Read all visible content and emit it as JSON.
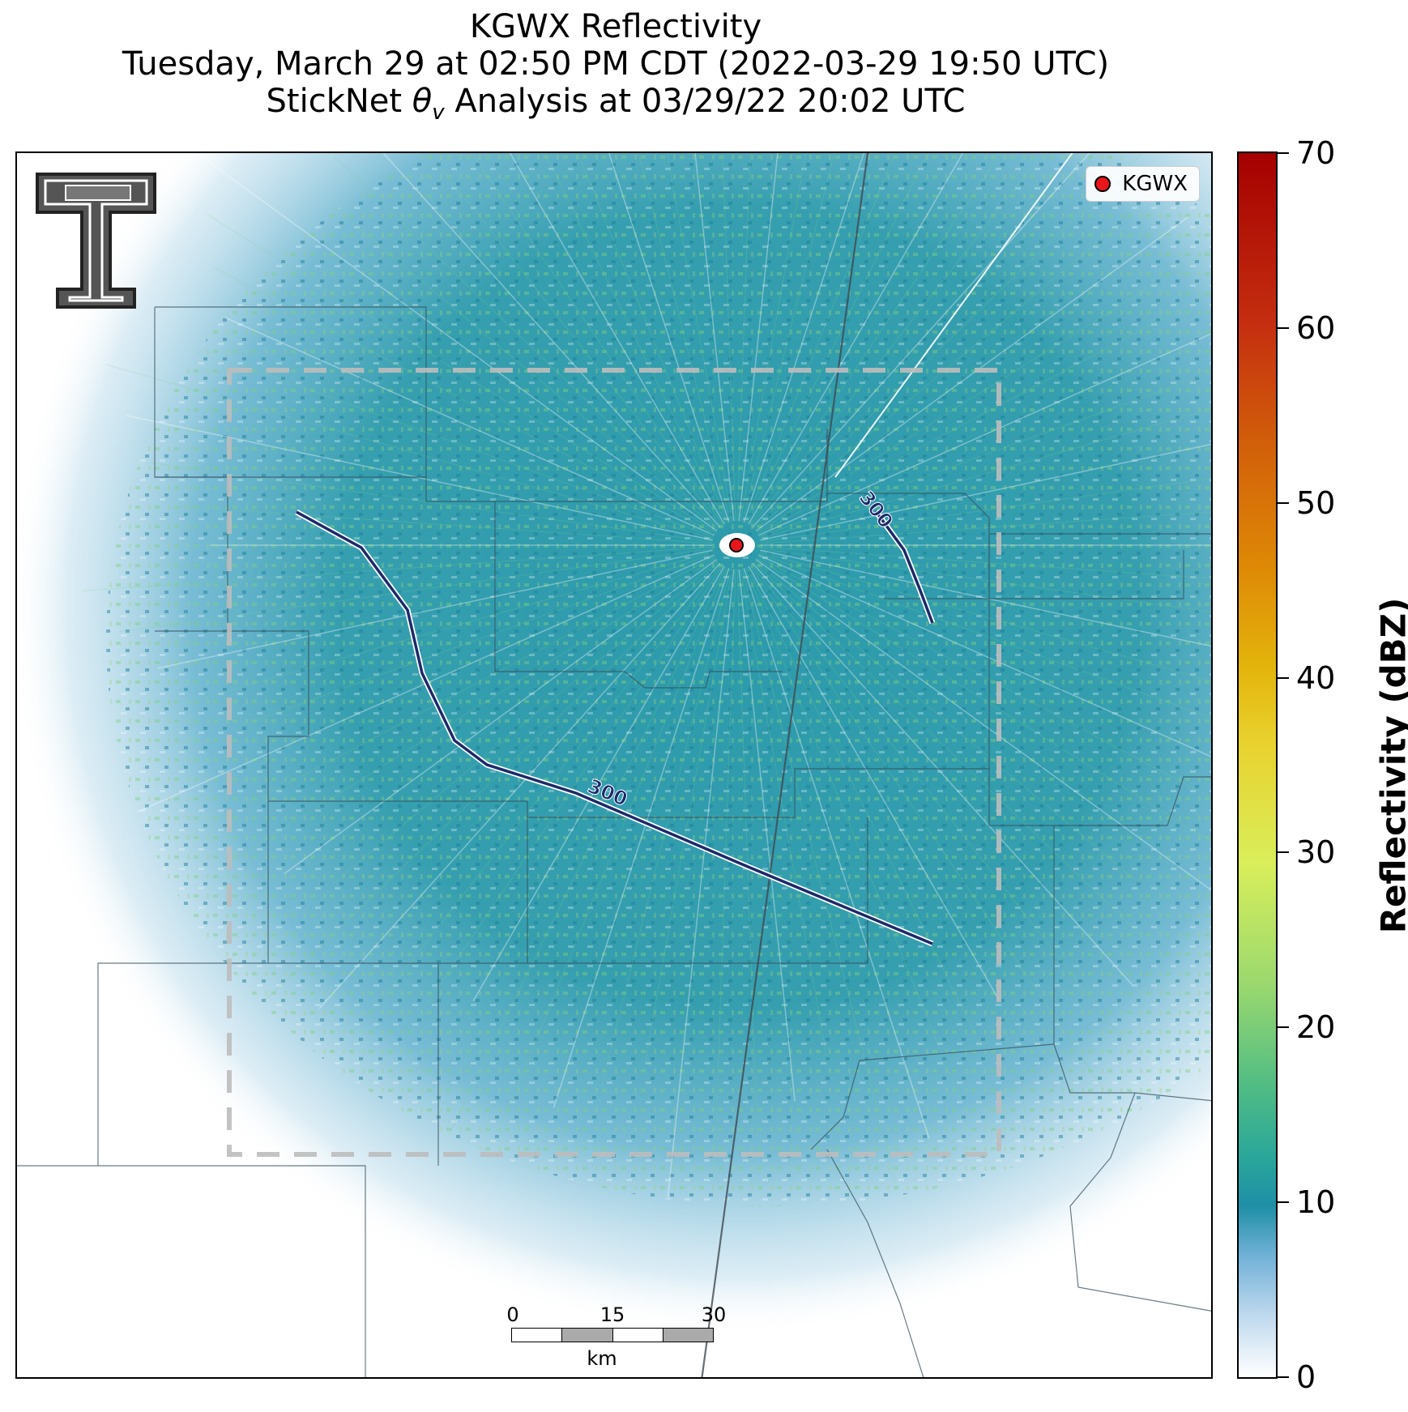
{
  "title": {
    "line1": "KGWX Reflectivity",
    "line2": "Tuesday, March 29 at 02:50 PM CDT (2022-03-29 19:50 UTC)",
    "line3_prefix": "StickNet ",
    "line3_symbol": "θ",
    "line3_subscript": "v",
    "line3_suffix": " Analysis at 03/29/22 20:02 UTC"
  },
  "legend": {
    "station": "KGWX",
    "marker_color": "#e8161b"
  },
  "contours": [
    {
      "label": "300"
    },
    {
      "label": "300"
    }
  ],
  "scalebar": {
    "ticks": [
      "0",
      "15",
      "30"
    ],
    "unit": "km"
  },
  "colorbar": {
    "label": "Reflectivity (dBZ)",
    "min": 0,
    "max": 70,
    "ticks": [
      "0",
      "10",
      "20",
      "30",
      "40",
      "50",
      "60",
      "70"
    ]
  },
  "colors": {
    "echo_base": "#2a9aa8",
    "echo_light": "#8cc6dd",
    "echo_bright": "#7ecf7a",
    "contour": "#1c2a6b",
    "analysis_box": "#bdbdbd"
  }
}
